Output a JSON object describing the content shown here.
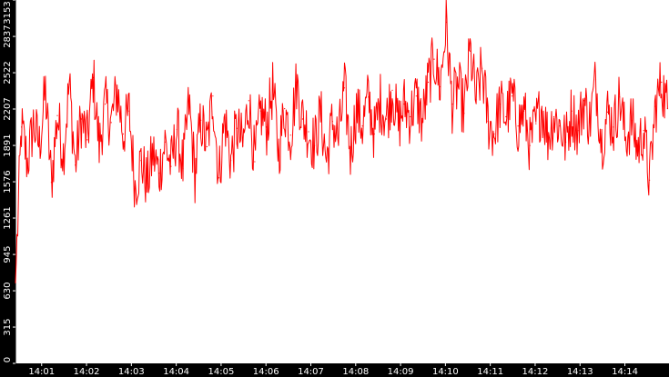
{
  "chart_data": {
    "type": "line",
    "title": "",
    "xlabel": "",
    "ylabel": "",
    "grid": false,
    "legend": "none",
    "colors": {
      "background": "#ffffff",
      "frame": "#000000",
      "series": "#ff0000",
      "tick_text": "#ffffff"
    },
    "ylim": [
      0,
      3153
    ],
    "y_ticks": [
      "0",
      "315",
      "630",
      "945",
      "1261",
      "1576",
      "1891",
      "2207",
      "2522",
      "2837",
      "3153"
    ],
    "x_range": [
      "14:00:25",
      "14:14:59"
    ],
    "x_ticks": [
      {
        "t": "14:01:00",
        "label": "14:01"
      },
      {
        "t": "14:02:00",
        "label": "14:02"
      },
      {
        "t": "14:03:00",
        "label": "14:03"
      },
      {
        "t": "14:04:00",
        "label": "14:04"
      },
      {
        "t": "14:05:00",
        "label": "14:05"
      },
      {
        "t": "14:06:00",
        "label": "14:06"
      },
      {
        "t": "14:07:00",
        "label": "14:07"
      },
      {
        "t": "14:08:00",
        "label": "14:08"
      },
      {
        "t": "14:09:00",
        "label": "14:09"
      },
      {
        "t": "14:10:00",
        "label": "14:10"
      },
      {
        "t": "14:11:00",
        "label": "14:11"
      },
      {
        "t": "14:12:00",
        "label": "14:12"
      },
      {
        "t": "14:13:00",
        "label": "14:13"
      },
      {
        "t": "14:14:00",
        "label": "14:14"
      }
    ],
    "series": [
      {
        "x": [
          "14:00:25",
          "14:00:33",
          "14:00:41",
          "14:00:49",
          "14:00:57",
          "14:01:05",
          "14:01:13",
          "14:01:21",
          "14:01:29",
          "14:01:37",
          "14:01:45",
          "14:01:53",
          "14:02:01",
          "14:02:09",
          "14:02:17",
          "14:02:25",
          "14:02:33",
          "14:02:41",
          "14:02:49",
          "14:02:57",
          "14:03:05",
          "14:03:13",
          "14:03:21",
          "14:03:29",
          "14:03:37",
          "14:03:45",
          "14:03:53",
          "14:04:01",
          "14:04:09",
          "14:04:17",
          "14:04:25",
          "14:04:33",
          "14:04:41",
          "14:04:49",
          "14:04:57",
          "14:05:05",
          "14:05:13",
          "14:05:21",
          "14:05:29",
          "14:05:37",
          "14:05:45",
          "14:05:53",
          "14:06:01",
          "14:06:09",
          "14:06:17",
          "14:06:25",
          "14:06:33",
          "14:06:41",
          "14:06:49",
          "14:06:57",
          "14:07:05",
          "14:07:13",
          "14:07:21",
          "14:07:29",
          "14:07:37",
          "14:07:45",
          "14:07:53",
          "14:08:01",
          "14:08:09",
          "14:08:17",
          "14:08:25",
          "14:08:33",
          "14:08:41",
          "14:08:49",
          "14:08:57",
          "14:09:05",
          "14:09:13",
          "14:09:21",
          "14:09:29",
          "14:09:37",
          "14:09:45",
          "14:09:53",
          "14:10:01",
          "14:10:09",
          "14:10:17",
          "14:10:25",
          "14:10:33",
          "14:10:41",
          "14:10:49",
          "14:10:57",
          "14:11:05",
          "14:11:13",
          "14:11:21",
          "14:11:29",
          "14:11:37",
          "14:11:45",
          "14:11:53",
          "14:12:01",
          "14:12:09",
          "14:12:17",
          "14:12:25",
          "14:12:33",
          "14:12:41",
          "14:12:49",
          "14:12:57",
          "14:13:05",
          "14:13:13",
          "14:13:21",
          "14:13:29",
          "14:13:37",
          "14:13:45",
          "14:13:53",
          "14:14:01",
          "14:14:09",
          "14:14:17",
          "14:14:25",
          "14:14:33",
          "14:14:41",
          "14:14:49",
          "14:14:57"
        ],
        "y": [
          700,
          2050,
          1740,
          2080,
          1890,
          2360,
          1570,
          2150,
          1820,
          2420,
          1720,
          2120,
          1940,
          2480,
          1880,
          2250,
          2090,
          2380,
          1990,
          2190,
          1530,
          1760,
          1560,
          1820,
          1650,
          1920,
          1710,
          2030,
          1690,
          2260,
          1640,
          2110,
          1880,
          2320,
          1610,
          2130,
          1760,
          2040,
          1890,
          2280,
          1750,
          2190,
          2050,
          2390,
          1830,
          2210,
          1980,
          2440,
          2120,
          2010,
          1890,
          2170,
          1760,
          2100,
          1940,
          2390,
          1830,
          2210,
          2060,
          2310,
          1990,
          2280,
          2120,
          2370,
          2060,
          2250,
          2140,
          2320,
          2090,
          2440,
          2640,
          2400,
          2960,
          2250,
          2420,
          2170,
          2710,
          2290,
          2560,
          2100,
          1990,
          2250,
          2140,
          2320,
          2060,
          2190,
          1890,
          2080,
          2230,
          1970,
          2140,
          2060,
          1920,
          2190,
          2020,
          2280,
          2090,
          2460,
          1910,
          2180,
          2050,
          2310,
          1940,
          2110,
          1860,
          2020,
          1590,
          2230,
          2440,
          2210
        ]
      }
    ]
  }
}
